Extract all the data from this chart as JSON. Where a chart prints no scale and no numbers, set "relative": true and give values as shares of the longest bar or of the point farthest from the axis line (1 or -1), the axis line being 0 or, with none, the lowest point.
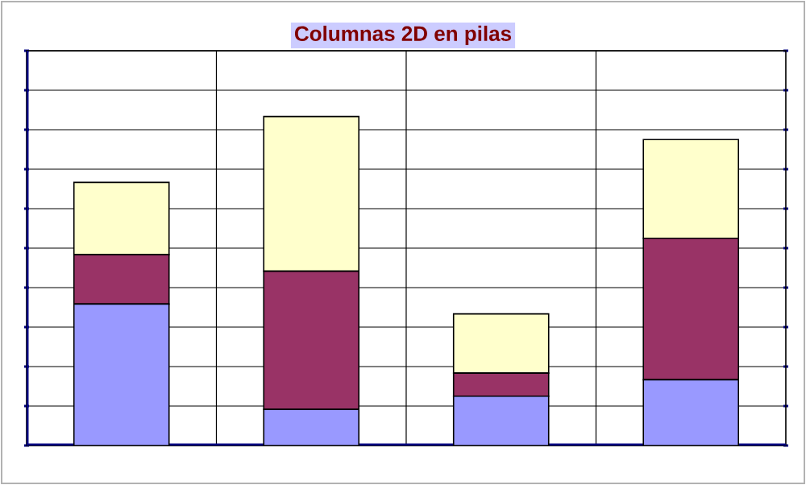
{
  "chart_data": {
    "type": "bar",
    "title": "Columnas 2D en pilas",
    "stacked": true,
    "relative": true,
    "grid": true,
    "categories": [
      null,
      null,
      null,
      null
    ],
    "series": [
      {
        "color": "#9999ff",
        "values": [
          0.43,
          0.11,
          0.15,
          0.2
        ]
      },
      {
        "color": "#993366",
        "values": [
          0.15,
          0.42,
          0.07,
          0.43
        ]
      },
      {
        "color": "#ffffcc",
        "values": [
          0.22,
          0.47,
          0.18,
          0.3
        ]
      }
    ]
  }
}
